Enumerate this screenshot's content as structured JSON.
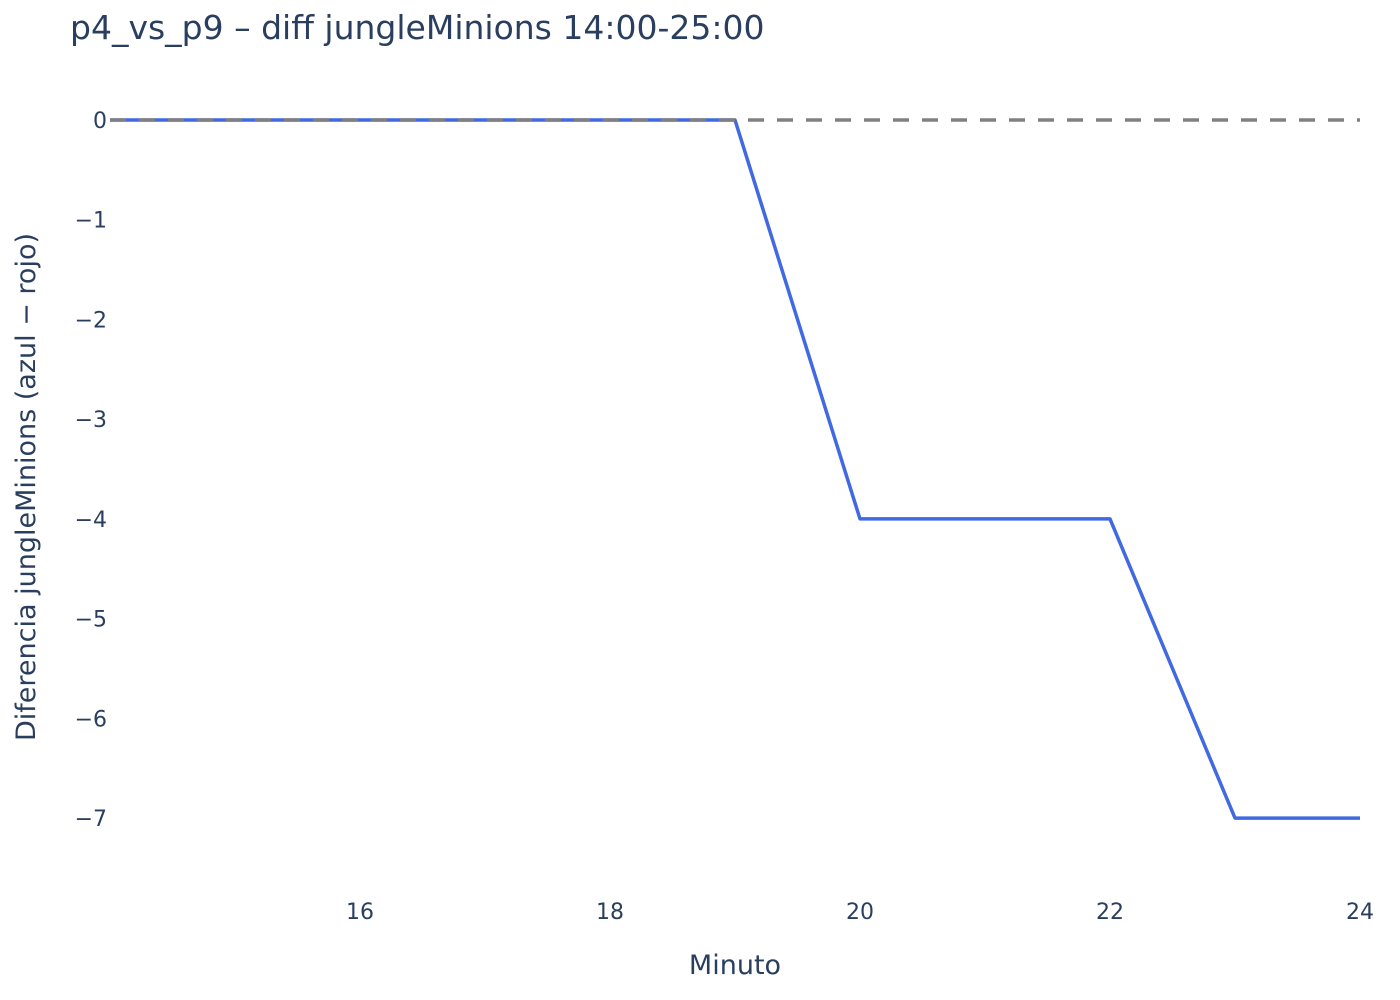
{
  "chart_data": {
    "type": "line",
    "title": "p4_vs_p9 – diff jungleMinions 14:00-25:00",
    "xlabel": "Minuto",
    "ylabel": "Diferencia jungleMinions (azul − rojo)",
    "x": [
      14,
      15,
      16,
      17,
      18,
      19,
      20,
      21,
      22,
      23,
      24
    ],
    "series": [
      {
        "values": [
          0,
          0,
          0,
          0,
          0,
          0,
          -4,
          -4,
          -4,
          -7,
          -7
        ],
        "color": "#4169e1"
      }
    ],
    "reference_line": {
      "y": 0,
      "style": "dashed",
      "color": "#808080"
    },
    "xlim": [
      14,
      24
    ],
    "ylim": [
      -7.4,
      0.05
    ],
    "xticks": [
      16,
      18,
      20,
      22,
      24
    ],
    "xtick_labels": [
      "16",
      "18",
      "20",
      "22",
      "24"
    ],
    "yticks": [
      0,
      -1,
      -2,
      -3,
      -4,
      -5,
      -6,
      -7
    ],
    "ytick_labels": [
      "0",
      "−1",
      "−2",
      "−3",
      "−4",
      "−5",
      "−6",
      "−7"
    ],
    "grid": false,
    "legend": false,
    "background": "#ffffff",
    "text_color": "#2a3f5f"
  }
}
